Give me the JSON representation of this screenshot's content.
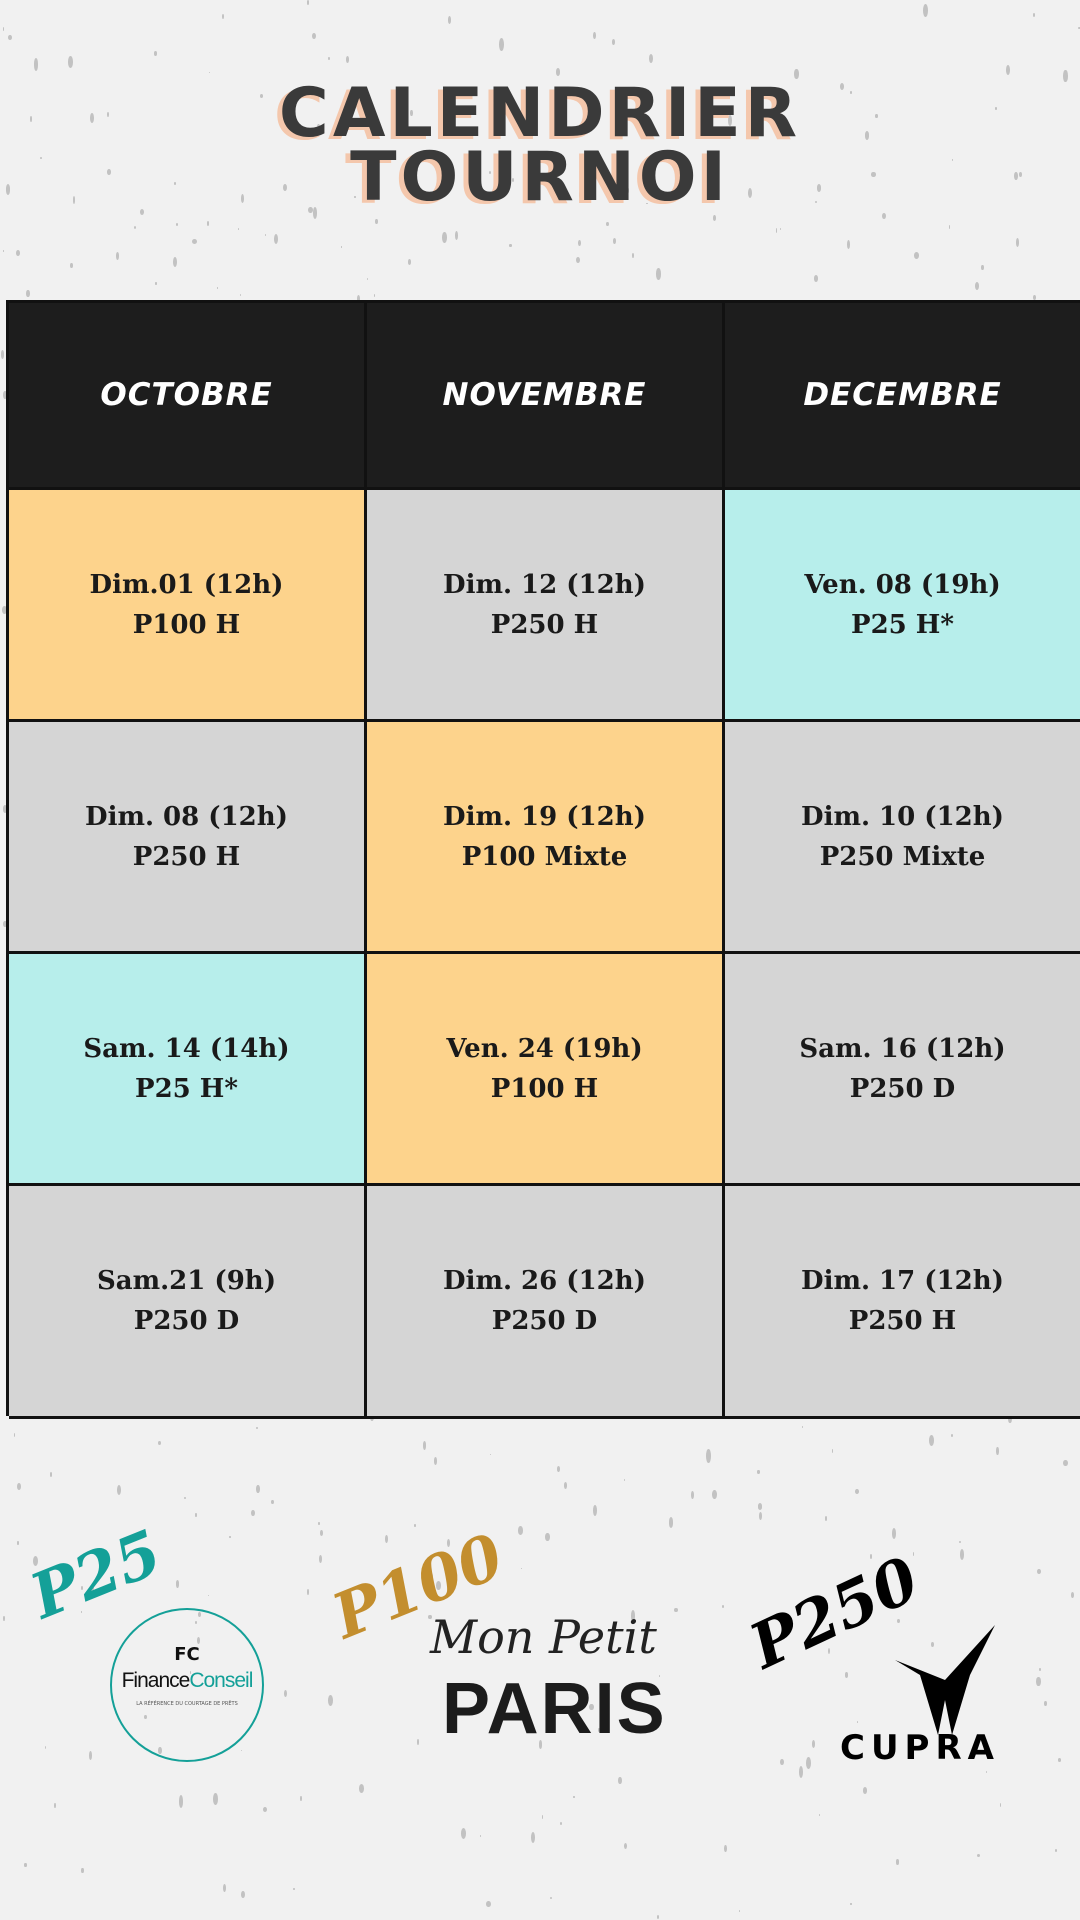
{
  "title": {
    "line1": "CALENDRIER",
    "line2": "TOURNOI"
  },
  "colors": {
    "P25": "#b7eeeb",
    "P100": "#fdd38c",
    "P250": "#d5d5d5",
    "header": "#1d1d1d"
  },
  "months": [
    "OCTOBRE",
    "NOVEMBRE",
    "DECEMBRE"
  ],
  "rows": [
    [
      {
        "date": "Dim.01 (12h)",
        "event": "P100 H",
        "level": "P100"
      },
      {
        "date": "Dim. 12 (12h)",
        "event": "P250 H",
        "level": "P250"
      },
      {
        "date": "Ven. 08 (19h)",
        "event": "P25 H*",
        "level": "P25"
      }
    ],
    [
      {
        "date": "Dim. 08 (12h)",
        "event": "P250 H",
        "level": "P250"
      },
      {
        "date": "Dim. 19 (12h)",
        "event": "P100 Mixte",
        "level": "P100"
      },
      {
        "date": "Dim. 10 (12h)",
        "event": "P250 Mixte",
        "level": "P250"
      }
    ],
    [
      {
        "date": "Sam. 14 (14h)",
        "event": "P25 H*",
        "level": "P25"
      },
      {
        "date": "Ven. 24 (19h)",
        "event": "P100 H",
        "level": "P100"
      },
      {
        "date": "Sam. 16 (12h)",
        "event": "P250 D",
        "level": "P250"
      }
    ],
    [
      {
        "date": "Sam.21 (9h)",
        "event": "P250 D",
        "level": "P250"
      },
      {
        "date": "Dim. 26 (12h)",
        "event": "P250 D",
        "level": "P250"
      },
      {
        "date": "Dim. 17 (12h)",
        "event": "P250 H",
        "level": "P250"
      }
    ]
  ],
  "sponsors": [
    {
      "level": "P25",
      "name": "FinanceConseil",
      "name_a": "Finance",
      "name_b": "Conseil",
      "monogram": "FC",
      "tagline": "LA RÉFÉRENCE DU COURTAGE DE PRÊTS",
      "color": "#14a098"
    },
    {
      "level": "P100",
      "name_a": "Mon Petit",
      "name_b": "PARIS",
      "color": "#c38e2e"
    },
    {
      "level": "P250",
      "name": "CUPRA",
      "color": "#000000"
    }
  ]
}
